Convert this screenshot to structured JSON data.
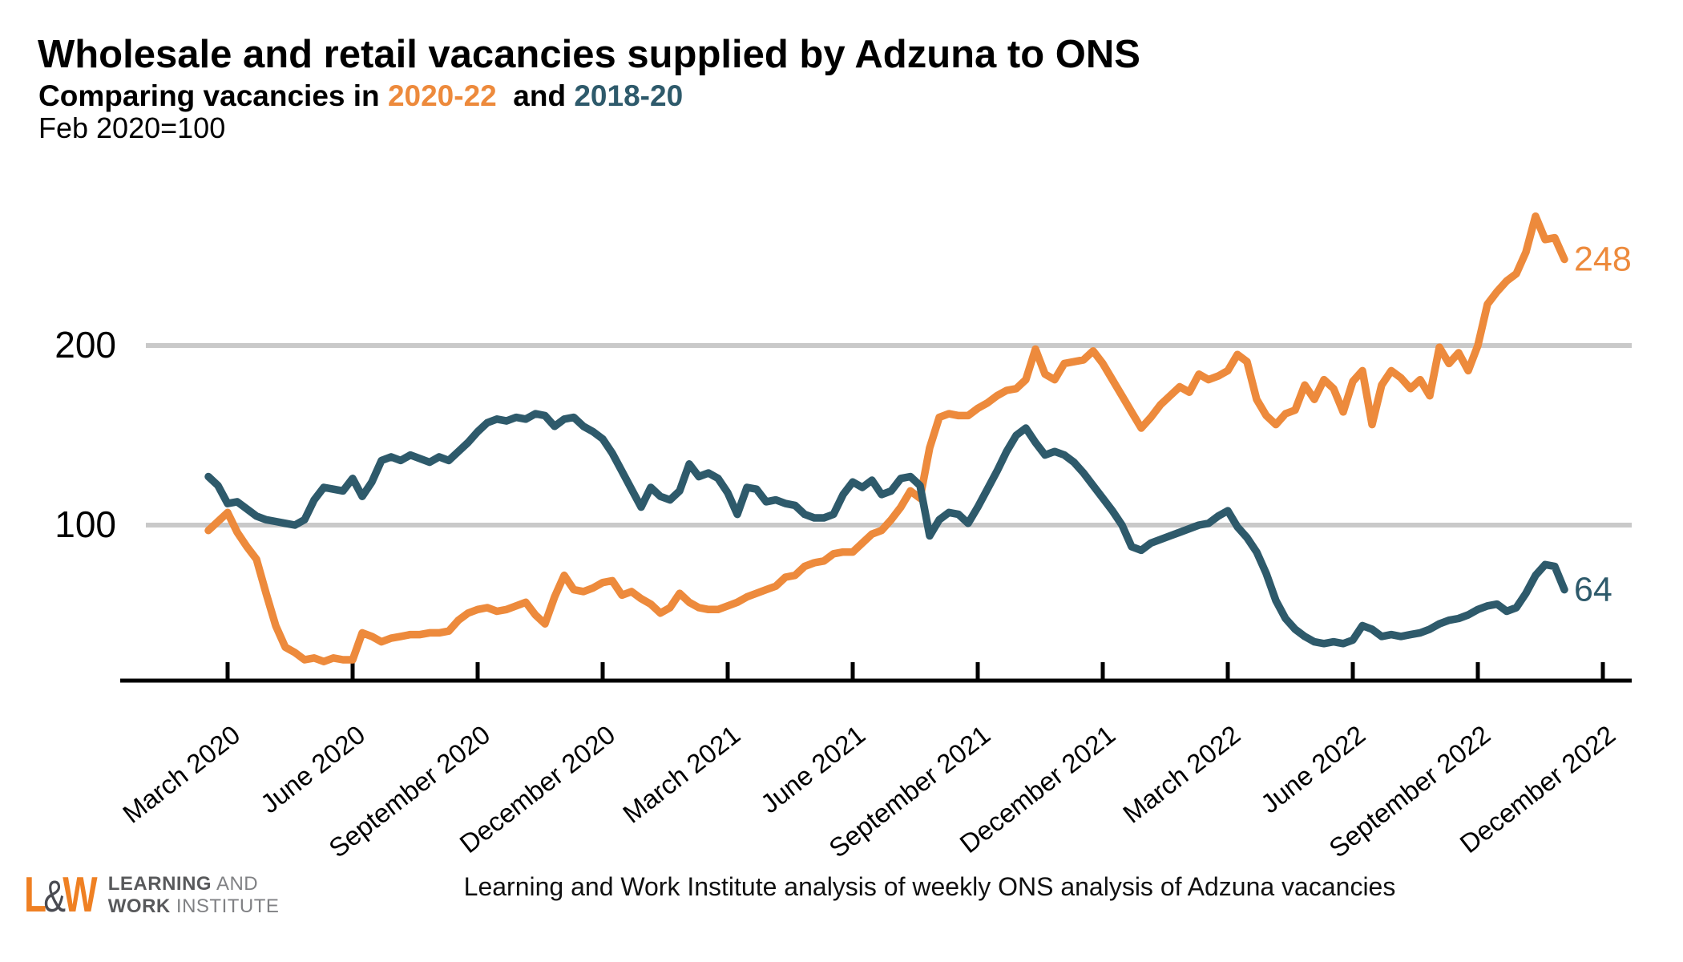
{
  "header": {
    "title": "Wholesale and retail vacancies supplied by Adzuna to ONS",
    "subtitle_prefix": "Comparing vacancies in ",
    "series1_label": "2020-22",
    "subtitle_middle": "  and ",
    "series2_label": "2018-20",
    "index_note": "Feb 2020=100"
  },
  "colors": {
    "series_2020_22": "#ED8A3C",
    "series_2018_20": "#2E5A6B",
    "gridline": "#C9C9C9",
    "axis": "#000000",
    "logo_orange": "#EF8023",
    "logo_gray": "#58595B"
  },
  "chart_data": {
    "type": "line",
    "title": "Wholesale and retail vacancies supplied by Adzuna to ONS",
    "subtitle": "Comparing vacancies in 2020-22 and 2018-20",
    "index_note": "Feb 2020=100",
    "y_ticks": [
      100,
      200
    ],
    "ylim": [
      13,
      290
    ],
    "grid": "horizontal-only",
    "legend_position": "in-subtitle",
    "x_unit": "weeks, weekly observations Feb 2020 - Dec 2022 (2020-22 series dates shown)",
    "x_tick_labels": [
      "March 2020",
      "June 2020",
      "September 2020",
      "December 2020",
      "March 2021",
      "June 2021",
      "September 2021",
      "December 2021",
      "March 2022",
      "June 2022",
      "September 2022",
      "December 2022"
    ],
    "x_tick_weeks": [
      2,
      15,
      28,
      41,
      54,
      67,
      80,
      93,
      106,
      119,
      132,
      145
    ],
    "series": [
      {
        "name": "2020-22",
        "color": "#ED8A3C",
        "end_label": "248",
        "values": [
          97,
          102,
          107,
          96,
          88,
          81,
          62,
          44,
          32,
          29,
          25,
          26,
          24,
          26,
          25,
          25,
          40,
          38,
          35,
          37,
          38,
          39,
          39,
          40,
          40,
          41,
          47,
          51,
          53,
          54,
          52,
          53,
          55,
          57,
          50,
          45,
          60,
          72,
          64,
          63,
          65,
          68,
          69,
          61,
          63,
          59,
          56,
          51,
          54,
          62,
          57,
          54,
          53,
          53,
          55,
          57,
          60,
          62,
          64,
          66,
          71,
          72,
          77,
          79,
          80,
          84,
          85,
          85,
          90,
          95,
          97,
          103,
          110,
          119,
          115,
          143,
          160,
          162,
          161,
          161,
          165,
          168,
          172,
          175,
          176,
          181,
          198,
          184,
          181,
          190,
          191,
          192,
          197,
          190,
          181,
          172,
          163,
          154,
          160,
          167,
          172,
          177,
          174,
          184,
          181,
          183,
          186,
          195,
          191,
          170,
          161,
          156,
          162,
          164,
          178,
          170,
          181,
          176,
          163,
          180,
          186,
          156,
          178,
          186,
          182,
          176,
          181,
          172,
          199,
          190,
          196,
          186,
          200,
          223,
          230,
          236,
          240,
          252,
          272,
          259,
          260,
          248
        ]
      },
      {
        "name": "2018-20",
        "color": "#2E5A6B",
        "end_label": "64",
        "values": [
          127,
          122,
          112,
          113,
          109,
          105,
          103,
          102,
          101,
          100,
          103,
          114,
          121,
          120,
          119,
          126,
          116,
          124,
          136,
          138,
          136,
          139,
          137,
          135,
          138,
          136,
          141,
          146,
          152,
          157,
          159,
          158,
          160,
          159,
          162,
          161,
          155,
          159,
          160,
          155,
          152,
          148,
          140,
          130,
          120,
          110,
          121,
          116,
          114,
          119,
          134,
          127,
          129,
          126,
          118,
          106,
          121,
          120,
          113,
          114,
          112,
          111,
          106,
          104,
          104,
          106,
          117,
          124,
          121,
          125,
          117,
          119,
          126,
          127,
          122,
          94,
          103,
          107,
          106,
          101,
          110,
          120,
          130,
          141,
          150,
          154,
          146,
          139,
          141,
          139,
          135,
          129,
          122,
          115,
          108,
          100,
          88,
          86,
          90,
          92,
          94,
          96,
          98,
          100,
          101,
          105,
          108,
          99,
          93,
          85,
          73,
          58,
          48,
          42,
          38,
          35,
          34,
          35,
          34,
          36,
          44,
          42,
          38,
          39,
          38,
          39,
          40,
          42,
          45,
          47,
          48,
          50,
          53,
          55,
          56,
          52,
          54,
          62,
          72,
          78,
          77,
          64
        ]
      }
    ]
  },
  "footer": {
    "source": "Learning and Work Institute analysis of weekly ONS analysis of Adzuna vacancies",
    "logo": {
      "mark_l": "L",
      "mark_amp": "&",
      "mark_w": "W",
      "line1_bold": "LEARNING",
      "line1_rest": " AND",
      "line2_bold": "WORK",
      "line2_rest": " INSTITUTE"
    }
  }
}
